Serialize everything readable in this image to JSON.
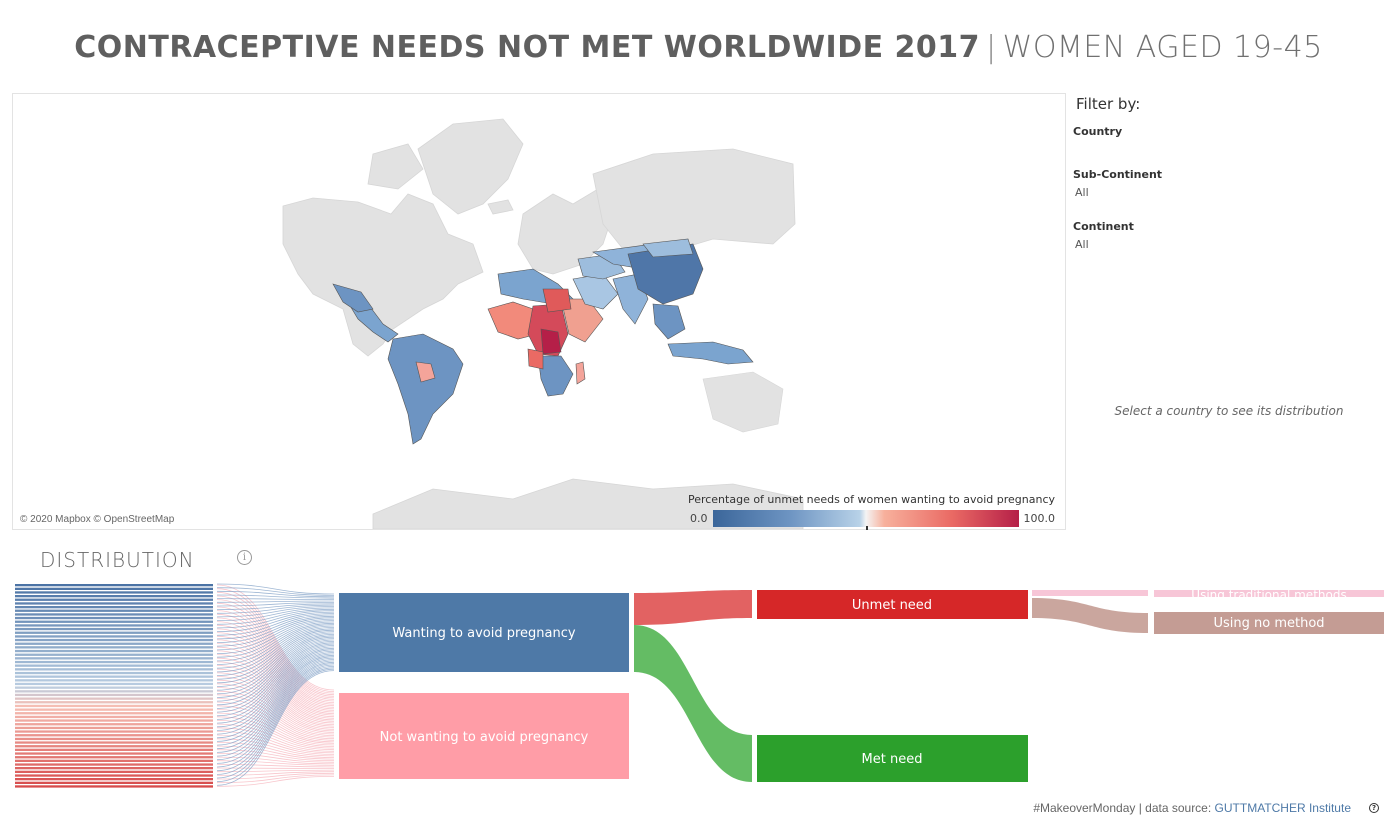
{
  "title": {
    "main": "CONTRACEPTIVE NEEDS NOT MET WORLDWIDE 2017",
    "separator": "|",
    "sub": "WOMEN AGED 19-45"
  },
  "map": {
    "attribution": "© 2020 Mapbox © OpenStreetMap",
    "legend": {
      "title": "Percentage of unmet needs of women wanting to avoid pregnancy",
      "min_label": "0.0",
      "max_label": "100.0",
      "colors": [
        "#3b669a",
        "#b8d2e8",
        "#f4f4f4",
        "#ea6a64",
        "#b51f48"
      ]
    }
  },
  "filters": {
    "header": "Filter by:",
    "country": {
      "label": "Country"
    },
    "sub_continent": {
      "label": "Sub-Continent",
      "value": "All"
    },
    "continent": {
      "label": "Continent",
      "value": "All"
    },
    "hint": "Select a country to see its distribution"
  },
  "distribution": {
    "title": "DISTRIBUTION",
    "info_icon": "info-icon",
    "nodes": {
      "wanting": {
        "label": "Wanting to avoid pregnancy",
        "color": "#4e79a7"
      },
      "not_wanting": {
        "label": "Not wanting to avoid pregnancy",
        "color": "#ff9da7"
      },
      "unmet": {
        "label": "Unmet need",
        "color": "#d62728"
      },
      "met": {
        "label": "Met need",
        "color": "#2ca02c"
      },
      "traditional": {
        "label": "Using traditional methods",
        "color": "#f7c6d7"
      },
      "no_method": {
        "label": "Using no method",
        "color": "#c49c94"
      }
    }
  },
  "footer": {
    "prefix": "#MakeoverMonday | data source: ",
    "source": "GUTTMATCHER Institute"
  }
}
